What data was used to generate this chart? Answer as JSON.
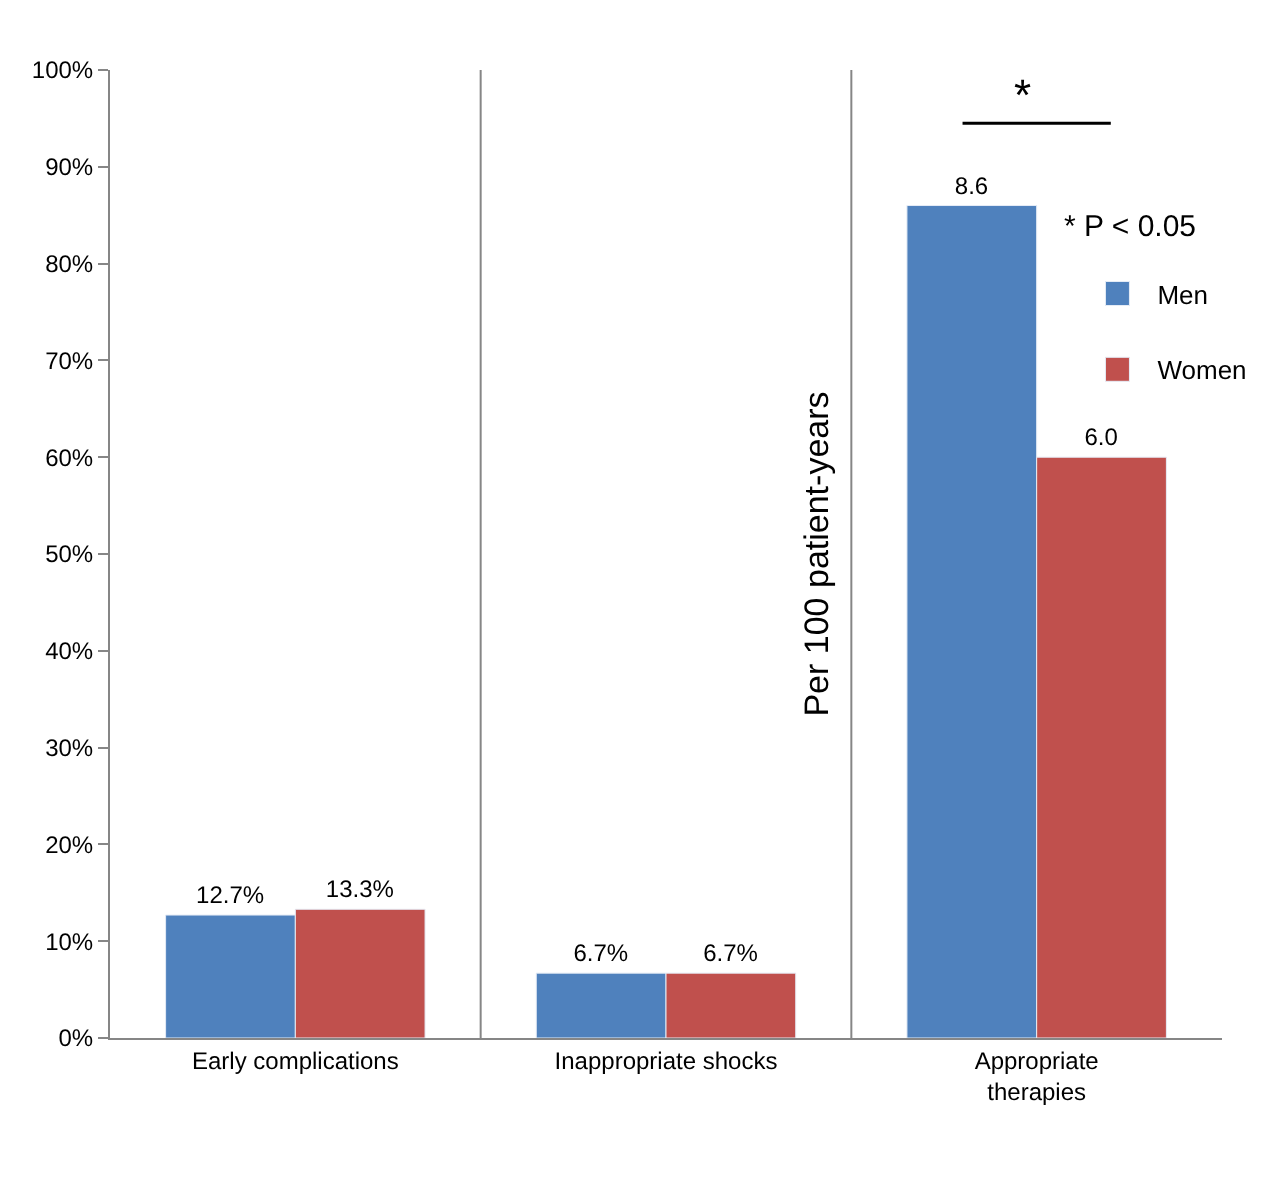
{
  "chart_data": {
    "type": "bar",
    "categories": [
      "Early complications",
      "Inappropriate shocks",
      "Appropriate therapies"
    ],
    "series": [
      {
        "name": "Men",
        "color": "#4f81bd",
        "values": [
          12.7,
          6.7,
          null
        ],
        "value_labels": [
          "12.7%",
          "6.7%",
          null
        ]
      },
      {
        "name": "Women",
        "color": "#c0504d",
        "values": [
          13.3,
          6.7,
          null
        ],
        "value_labels": [
          "13.3%",
          "6.7%",
          null
        ]
      },
      {
        "color": "#4f81bd",
        "axis": "y2",
        "values": [
          null,
          null,
          8.6
        ],
        "value_labels": [
          null,
          null,
          "8.6"
        ]
      },
      {
        "color": "#c0504d",
        "axis": "y2",
        "values": [
          null,
          null,
          6.0
        ],
        "value_labels": [
          null,
          null,
          "6.0"
        ]
      }
    ],
    "ylim": [
      0,
      100
    ],
    "yticks": [
      {
        "value": 0,
        "label": "0%"
      },
      {
        "value": 10,
        "label": "10%"
      },
      {
        "value": 20,
        "label": "20%"
      },
      {
        "value": 30,
        "label": "30%"
      },
      {
        "value": 40,
        "label": "40%"
      },
      {
        "value": 50,
        "label": "50%"
      },
      {
        "value": 60,
        "label": "60%"
      },
      {
        "value": 70,
        "label": "70%"
      },
      {
        "value": 80,
        "label": "80%"
      },
      {
        "value": 90,
        "label": "90%"
      },
      {
        "value": 100,
        "label": "100%"
      }
    ],
    "y2lim": [
      0,
      10
    ],
    "y2label": "Per 100 patient-years",
    "grid": "x",
    "legend": "right",
    "annotations": [
      "*",
      "* P < 0.05"
    ]
  }
}
